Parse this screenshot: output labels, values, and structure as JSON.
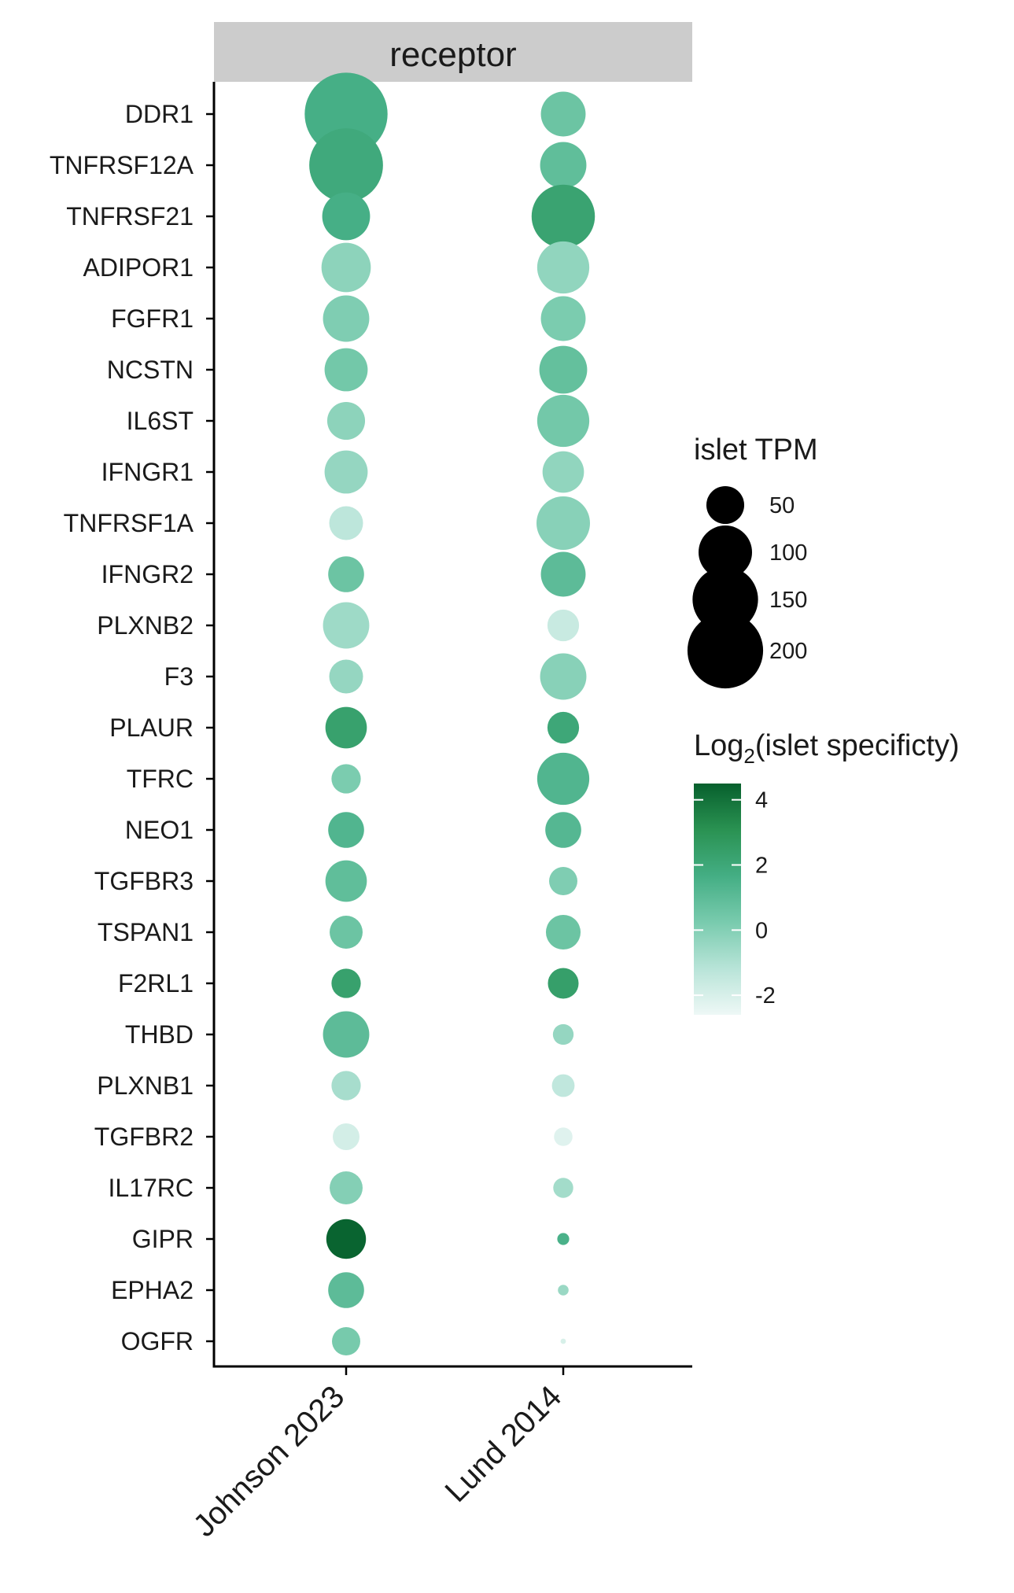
{
  "chart_data": {
    "type": "scatter",
    "facet_label": "receptor",
    "genes": [
      "DDR1",
      "TNFRSF12A",
      "TNFRSF21",
      "ADIPOR1",
      "FGFR1",
      "NCSTN",
      "IL6ST",
      "IFNGR1",
      "TNFRSF1A",
      "IFNGR2",
      "PLXNB2",
      "F3",
      "PLAUR",
      "TFRC",
      "NEO1",
      "TGFBR3",
      "TSPAN1",
      "F2RL1",
      "THBD",
      "PLXNB1",
      "TGFBR2",
      "IL17RC",
      "GIPR",
      "EPHA2",
      "OGFR"
    ],
    "datasets": [
      "Johnson 2023",
      "Lund 2014"
    ],
    "points": [
      {
        "gene": "DDR1",
        "dataset": "Johnson 2023",
        "tpm": 240,
        "log2_specificity": 1.6
      },
      {
        "gene": "DDR1",
        "dataset": "Lund 2014",
        "tpm": 70,
        "log2_specificity": 0.6
      },
      {
        "gene": "TNFRSF12A",
        "dataset": "Johnson 2023",
        "tpm": 190,
        "log2_specificity": 1.9
      },
      {
        "gene": "TNFRSF12A",
        "dataset": "Lund 2014",
        "tpm": 75,
        "log2_specificity": 0.9
      },
      {
        "gene": "TNFRSF21",
        "dataset": "Johnson 2023",
        "tpm": 80,
        "log2_specificity": 1.6
      },
      {
        "gene": "TNFRSF21",
        "dataset": "Lund 2014",
        "tpm": 140,
        "log2_specificity": 2.2
      },
      {
        "gene": "ADIPOR1",
        "dataset": "Johnson 2023",
        "tpm": 85,
        "log2_specificity": -0.2
      },
      {
        "gene": "ADIPOR1",
        "dataset": "Lund 2014",
        "tpm": 95,
        "log2_specificity": -0.3
      },
      {
        "gene": "FGFR1",
        "dataset": "Johnson 2023",
        "tpm": 75,
        "log2_specificity": 0.1
      },
      {
        "gene": "FGFR1",
        "dataset": "Lund 2014",
        "tpm": 70,
        "log2_specificity": 0.2
      },
      {
        "gene": "NCSTN",
        "dataset": "Johnson 2023",
        "tpm": 65,
        "log2_specificity": 0.4
      },
      {
        "gene": "NCSTN",
        "dataset": "Lund 2014",
        "tpm": 80,
        "log2_specificity": 0.8
      },
      {
        "gene": "IL6ST",
        "dataset": "Johnson 2023",
        "tpm": 50,
        "log2_specificity": -0.2
      },
      {
        "gene": "IL6ST",
        "dataset": "Lund 2014",
        "tpm": 95,
        "log2_specificity": 0.4
      },
      {
        "gene": "IFNGR1",
        "dataset": "Johnson 2023",
        "tpm": 65,
        "log2_specificity": -0.4
      },
      {
        "gene": "IFNGR1",
        "dataset": "Lund 2014",
        "tpm": 60,
        "log2_specificity": -0.3
      },
      {
        "gene": "TNFRSF1A",
        "dataset": "Johnson 2023",
        "tpm": 40,
        "log2_specificity": -1.3
      },
      {
        "gene": "TNFRSF1A",
        "dataset": "Lund 2014",
        "tpm": 100,
        "log2_specificity": -0.1
      },
      {
        "gene": "IFNGR2",
        "dataset": "Johnson 2023",
        "tpm": 45,
        "log2_specificity": 0.6
      },
      {
        "gene": "IFNGR2",
        "dataset": "Lund 2014",
        "tpm": 70,
        "log2_specificity": 1.0
      },
      {
        "gene": "PLXNB2",
        "dataset": "Johnson 2023",
        "tpm": 75,
        "log2_specificity": -0.6
      },
      {
        "gene": "PLXNB2",
        "dataset": "Lund 2014",
        "tpm": 35,
        "log2_specificity": -1.6
      },
      {
        "gene": "F3",
        "dataset": "Johnson 2023",
        "tpm": 40,
        "log2_specificity": -0.4
      },
      {
        "gene": "F3",
        "dataset": "Lund 2014",
        "tpm": 75,
        "log2_specificity": -0.1
      },
      {
        "gene": "PLAUR",
        "dataset": "Johnson 2023",
        "tpm": 60,
        "log2_specificity": 2.3
      },
      {
        "gene": "PLAUR",
        "dataset": "Lund 2014",
        "tpm": 35,
        "log2_specificity": 2.0
      },
      {
        "gene": "TFRC",
        "dataset": "Johnson 2023",
        "tpm": 30,
        "log2_specificity": 0.2
      },
      {
        "gene": "TFRC",
        "dataset": "Lund 2014",
        "tpm": 95,
        "log2_specificity": 1.3
      },
      {
        "gene": "NEO1",
        "dataset": "Johnson 2023",
        "tpm": 45,
        "log2_specificity": 1.3
      },
      {
        "gene": "NEO1",
        "dataset": "Lund 2014",
        "tpm": 45,
        "log2_specificity": 1.2
      },
      {
        "gene": "TGFBR3",
        "dataset": "Johnson 2023",
        "tpm": 60,
        "log2_specificity": 0.9
      },
      {
        "gene": "TGFBR3",
        "dataset": "Lund 2014",
        "tpm": 28,
        "log2_specificity": 0.1
      },
      {
        "gene": "TSPAN1",
        "dataset": "Johnson 2023",
        "tpm": 38,
        "log2_specificity": 0.6
      },
      {
        "gene": "TSPAN1",
        "dataset": "Lund 2014",
        "tpm": 42,
        "log2_specificity": 0.6
      },
      {
        "gene": "F2RL1",
        "dataset": "Johnson 2023",
        "tpm": 30,
        "log2_specificity": 2.3
      },
      {
        "gene": "F2RL1",
        "dataset": "Lund 2014",
        "tpm": 33,
        "log2_specificity": 2.4
      },
      {
        "gene": "THBD",
        "dataset": "Johnson 2023",
        "tpm": 75,
        "log2_specificity": 1.0
      },
      {
        "gene": "THBD",
        "dataset": "Lund 2014",
        "tpm": 15,
        "log2_specificity": -0.4
      },
      {
        "gene": "PLXNB1",
        "dataset": "Johnson 2023",
        "tpm": 30,
        "log2_specificity": -0.8
      },
      {
        "gene": "PLXNB1",
        "dataset": "Lund 2014",
        "tpm": 18,
        "log2_specificity": -1.4
      },
      {
        "gene": "TGFBR2",
        "dataset": "Johnson 2023",
        "tpm": 25,
        "log2_specificity": -1.9
      },
      {
        "gene": "TGFBR2",
        "dataset": "Lund 2014",
        "tpm": 12,
        "log2_specificity": -2.2
      },
      {
        "gene": "IL17RC",
        "dataset": "Johnson 2023",
        "tpm": 38,
        "log2_specificity": 0.0
      },
      {
        "gene": "IL17RC",
        "dataset": "Lund 2014",
        "tpm": 14,
        "log2_specificity": -0.7
      },
      {
        "gene": "GIPR",
        "dataset": "Johnson 2023",
        "tpm": 55,
        "log2_specificity": 4.4
      },
      {
        "gene": "GIPR",
        "dataset": "Lund 2014",
        "tpm": 5,
        "log2_specificity": 1.5
      },
      {
        "gene": "EPHA2",
        "dataset": "Johnson 2023",
        "tpm": 45,
        "log2_specificity": 1.0
      },
      {
        "gene": "EPHA2",
        "dataset": "Lund 2014",
        "tpm": 4,
        "log2_specificity": -0.5
      },
      {
        "gene": "OGFR",
        "dataset": "Johnson 2023",
        "tpm": 28,
        "log2_specificity": 0.3
      },
      {
        "gene": "OGFR",
        "dataset": "Lund 2014",
        "tpm": 1,
        "log2_specificity": -2.0
      }
    ],
    "size_legend": {
      "title": "islet TPM",
      "breaks": [
        50,
        100,
        150,
        200
      ],
      "labels": [
        "50",
        "100",
        "150",
        "200"
      ]
    },
    "color_legend": {
      "title_main": "Log",
      "title_sub": "2",
      "title_rest": "(islet specificty)",
      "limits": [
        -2.6,
        4.5
      ],
      "breaks": [
        4,
        2,
        0,
        -2
      ],
      "labels": [
        "4",
        "2",
        "0",
        "-2"
      ],
      "gradient": [
        "#eef8f6",
        "#b8e4d8",
        "#79cbae",
        "#44ae84",
        "#2a9252",
        "#07602d"
      ]
    },
    "colors": {
      "strip_fill": "#cccccc",
      "axis": "#000000"
    }
  }
}
